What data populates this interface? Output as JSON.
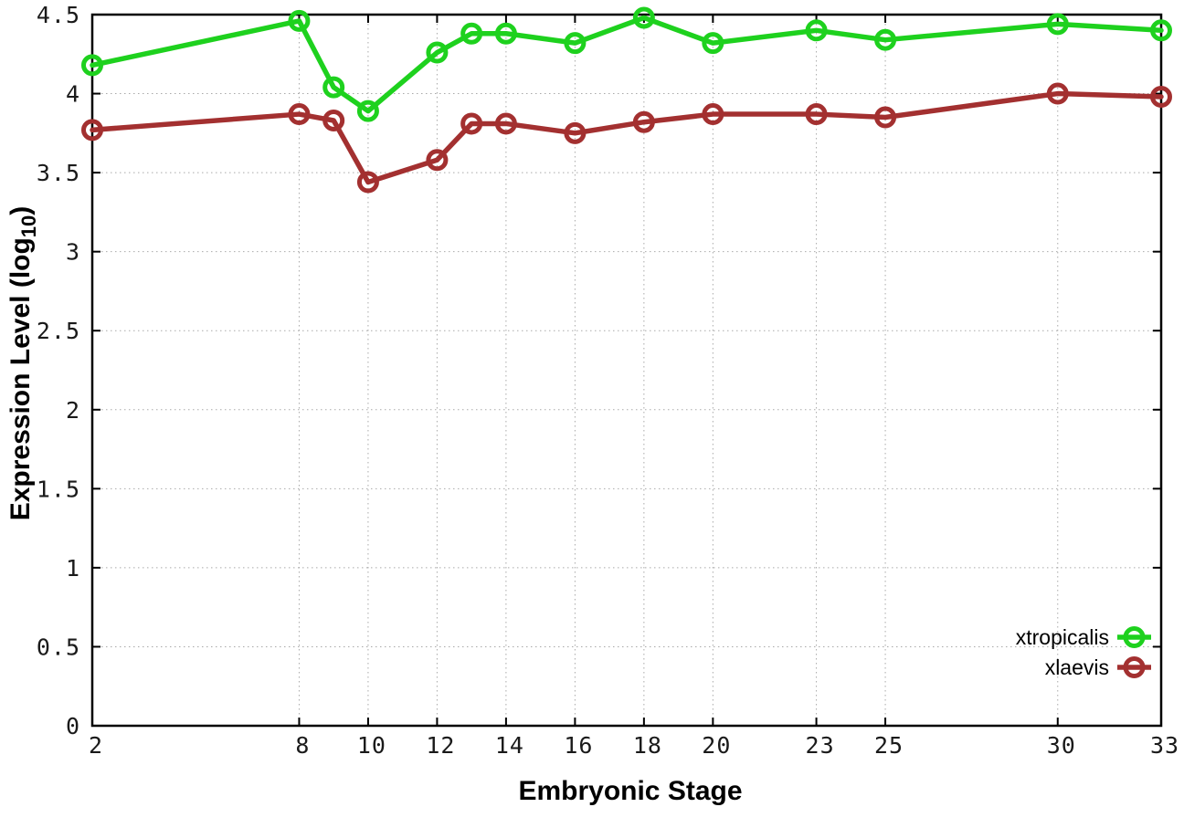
{
  "chart_data": {
    "type": "line",
    "title": "",
    "xlabel": "Embryonic Stage",
    "ylabel": "Expression Level (log10)",
    "ylabel_parts": {
      "main": "Expression Level (log",
      "sub": "10",
      "close": ")"
    },
    "x": [
      2,
      8,
      9,
      10,
      12,
      13,
      14,
      16,
      18,
      20,
      23,
      25,
      30,
      33
    ],
    "x_tick_values": [
      2,
      8,
      10,
      12,
      14,
      16,
      18,
      20,
      23,
      25,
      30,
      33
    ],
    "x_tick_labels": [
      "2",
      "8",
      "10",
      "12",
      "14",
      "16",
      "18",
      "20",
      "23",
      "25",
      "30",
      "33"
    ],
    "y_tick_values": [
      0,
      0.5,
      1,
      1.5,
      2,
      2.5,
      3,
      3.5,
      4,
      4.5
    ],
    "y_tick_labels": [
      "0",
      "0.5",
      "1",
      "1.5",
      "2",
      "2.5",
      "3",
      "3.5",
      "4",
      "4.5"
    ],
    "xlim": [
      2,
      33
    ],
    "ylim": [
      0,
      4.5
    ],
    "grid": true,
    "legend_position": "bottom-right",
    "series": [
      {
        "name": "xtropicalis",
        "color": "#1ed11e",
        "marker": "open-circle",
        "values": [
          4.18,
          4.46,
          4.04,
          3.89,
          4.26,
          4.38,
          4.38,
          4.32,
          4.48,
          4.32,
          4.4,
          4.34,
          4.44,
          4.4
        ]
      },
      {
        "name": "xlaevis",
        "color": "#a33030",
        "marker": "open-circle",
        "values": [
          3.77,
          3.87,
          3.83,
          3.44,
          3.58,
          3.81,
          3.81,
          3.75,
          3.82,
          3.87,
          3.87,
          3.85,
          4.0,
          3.98
        ]
      }
    ],
    "colors": {
      "border": "#000000",
      "grid": "#a9a9a9",
      "tick_text": "#1a1a1a",
      "background": "#ffffff"
    }
  }
}
